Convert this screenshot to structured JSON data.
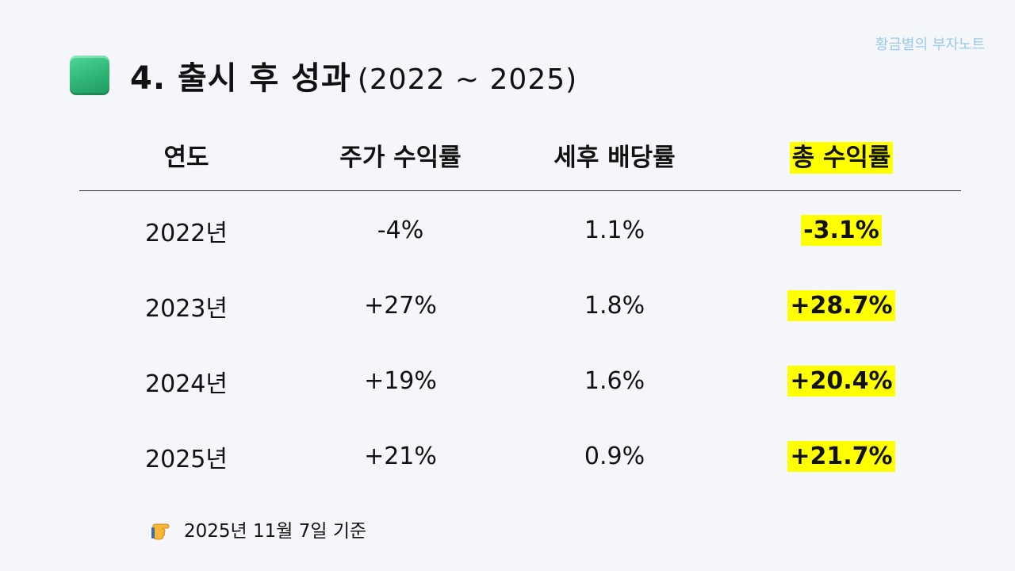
{
  "watermark": "황금별의 부자노트",
  "title": {
    "main": "4. 출시 후 성과",
    "range": "(2022 ~ 2025)"
  },
  "table": {
    "headers": [
      "연도",
      "주가 수익률",
      "세후 배당률",
      "총 수익률"
    ],
    "rows": [
      [
        "2022년",
        "-4%",
        "1.1%",
        "-3.1%"
      ],
      [
        "2023년",
        "+27%",
        "1.8%",
        "+28.7%"
      ],
      [
        "2024년",
        "+19%",
        "1.6%",
        "+20.4%"
      ],
      [
        "2025년",
        "+21%",
        "0.9%",
        "+21.7%"
      ]
    ],
    "highlight_color": "#ffff00"
  },
  "footnote": "2025년 11월 7일 기준",
  "icons": {
    "title_icon": "green-square-icon",
    "footnote_icon": "pointing-hand-icon"
  }
}
